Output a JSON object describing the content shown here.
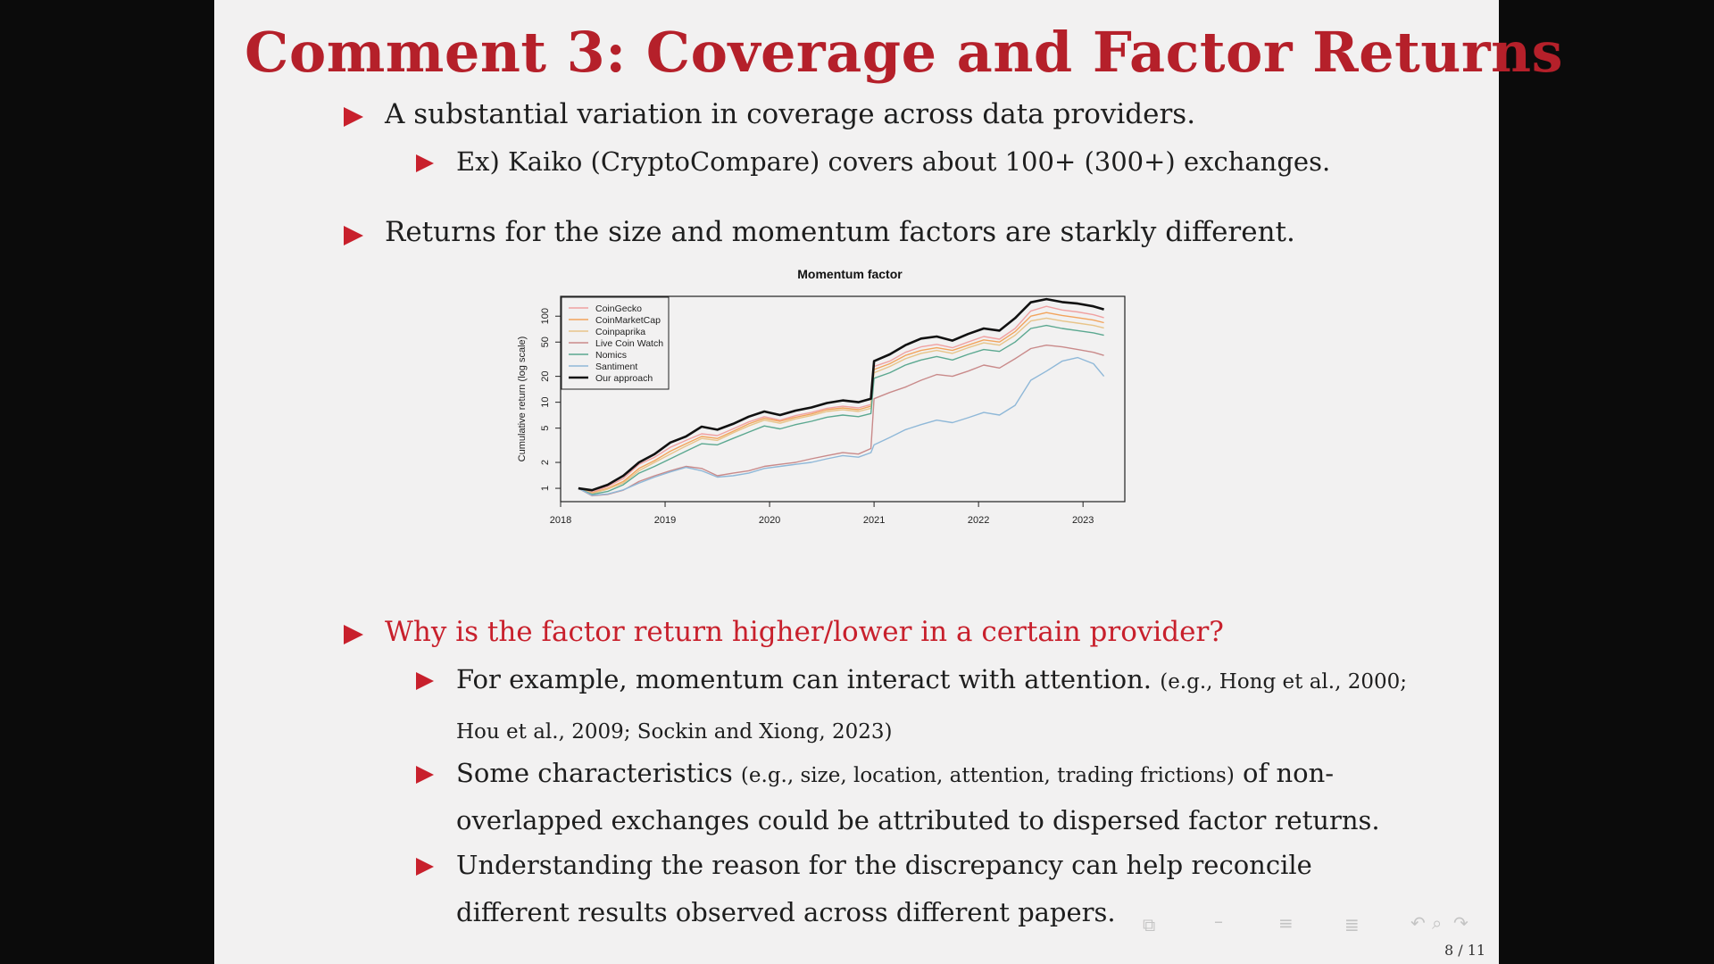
{
  "slide": {
    "title": "Comment 3: Coverage and Factor Returns",
    "page_number": "8 / 11",
    "bullets": {
      "b1": "A substantial variation in coverage across data providers.",
      "b1_1": "Ex) Kaiko (CryptoCompare) covers about 100+ (300+) exchanges.",
      "b2": "Returns for the size and momentum factors are starkly different.",
      "b3": "Why is the factor return higher/lower in a certain provider?",
      "b3_1_main": "For example, momentum can interact with attention.",
      "b3_1_cite_a": "(e.g., Hong et al., 2000;",
      "b3_1_cite_b": "Hou et al., 2009; Sockin and Xiong, 2023)",
      "b3_2_a": "Some characteristics",
      "b3_2_cite": "(e.g., size, location, attention, trading frictions)",
      "b3_2_b": "of non-",
      "b3_2_c": "overlapped exchanges could be attributed to dispersed factor returns.",
      "b3_3_a": "Understanding the reason for the discrepancy can help reconcile",
      "b3_3_b": "different results observed across different papers."
    },
    "nav_icons": [
      "frame-icon",
      "section-icon",
      "subsection-icon",
      "slide-icon",
      "search-icon",
      "undo-icon"
    ]
  },
  "colors": {
    "accent": "#c8202c",
    "title": "#b5202a"
  },
  "chart_data": {
    "type": "line",
    "title": "Momentum factor",
    "xlabel": "",
    "ylabel": "Cumulative return (log scale)",
    "xlim": [
      2018.0,
      2023.4
    ],
    "x_ticks": [
      "2018",
      "2019",
      "2020",
      "2021",
      "2022",
      "2023"
    ],
    "y_scale": "log",
    "ylim": [
      0.7,
      170
    ],
    "y_ticks": [
      "1",
      "2",
      "5",
      "10",
      "20",
      "50",
      "100"
    ],
    "legend_position": "top-left",
    "x": [
      2018.17,
      2018.3,
      2018.45,
      2018.6,
      2018.75,
      2018.9,
      2019.05,
      2019.2,
      2019.35,
      2019.5,
      2019.65,
      2019.8,
      2019.95,
      2020.1,
      2020.25,
      2020.4,
      2020.55,
      2020.7,
      2020.85,
      2020.97,
      2021.0,
      2021.15,
      2021.3,
      2021.45,
      2021.6,
      2021.75,
      2021.9,
      2022.05,
      2022.2,
      2022.35,
      2022.5,
      2022.65,
      2022.8,
      2022.95,
      2023.1,
      2023.2
    ],
    "series": [
      {
        "name": "CoinGecko",
        "color": "#f0a1a1",
        "values": [
          1.0,
          0.9,
          1.05,
          1.3,
          1.9,
          2.3,
          3.0,
          3.6,
          4.3,
          4.1,
          4.9,
          5.9,
          6.8,
          6.2,
          7.0,
          7.6,
          8.5,
          9.0,
          8.6,
          9.4,
          26,
          30,
          38,
          44,
          47,
          43,
          50,
          58,
          54,
          72,
          115,
          130,
          118,
          112,
          104,
          96
        ]
      },
      {
        "name": "CoinMarketCap",
        "color": "#f2a45c",
        "values": [
          1.0,
          0.88,
          1.0,
          1.2,
          1.7,
          2.1,
          2.7,
          3.3,
          4.0,
          3.8,
          4.6,
          5.6,
          6.5,
          6.0,
          6.7,
          7.3,
          8.2,
          8.6,
          8.2,
          9.0,
          24,
          28,
          35,
          40,
          43,
          40,
          46,
          53,
          50,
          66,
          100,
          110,
          102,
          96,
          90,
          84
        ]
      },
      {
        "name": "Coinpaprika",
        "color": "#e8c489",
        "values": [
          1.0,
          0.87,
          0.98,
          1.15,
          1.6,
          2.0,
          2.5,
          3.1,
          3.8,
          3.6,
          4.4,
          5.3,
          6.2,
          5.7,
          6.4,
          7.0,
          7.8,
          8.2,
          7.8,
          8.5,
          22,
          26,
          32,
          37,
          40,
          37,
          43,
          49,
          46,
          60,
          88,
          95,
          88,
          83,
          78,
          73
        ]
      },
      {
        "name": "Live Coin Watch",
        "color": "#c98a8a",
        "values": [
          1.0,
          0.82,
          0.85,
          0.95,
          1.2,
          1.4,
          1.6,
          1.8,
          1.7,
          1.4,
          1.5,
          1.6,
          1.8,
          1.9,
          2.0,
          2.2,
          2.4,
          2.6,
          2.5,
          2.9,
          11,
          13,
          15,
          18,
          21,
          20,
          23,
          27,
          25,
          32,
          42,
          46,
          44,
          41,
          38,
          35
        ]
      },
      {
        "name": "Nomics",
        "color": "#5ba890",
        "values": [
          1.0,
          0.85,
          0.92,
          1.1,
          1.5,
          1.8,
          2.2,
          2.7,
          3.3,
          3.2,
          3.8,
          4.5,
          5.3,
          4.9,
          5.5,
          6.0,
          6.7,
          7.1,
          6.8,
          7.4,
          19,
          22,
          27,
          31,
          34,
          31,
          36,
          41,
          39,
          50,
          72,
          78,
          72,
          68,
          64,
          60
        ]
      },
      {
        "name": "Santiment",
        "color": "#8fb8d8",
        "values": [
          1.0,
          0.83,
          0.86,
          0.96,
          1.15,
          1.35,
          1.55,
          1.75,
          1.6,
          1.35,
          1.4,
          1.5,
          1.7,
          1.8,
          1.9,
          2.0,
          2.2,
          2.4,
          2.3,
          2.6,
          3.2,
          3.9,
          4.8,
          5.5,
          6.2,
          5.8,
          6.6,
          7.6,
          7.1,
          9.2,
          18,
          23,
          30,
          33,
          28,
          20
        ]
      },
      {
        "name": "Our approach",
        "color": "#111111",
        "values": [
          1.0,
          0.95,
          1.1,
          1.4,
          2.0,
          2.5,
          3.4,
          4.0,
          5.2,
          4.8,
          5.6,
          6.8,
          7.8,
          7.1,
          8.0,
          8.7,
          9.8,
          10.5,
          10.0,
          11.0,
          30,
          36,
          46,
          55,
          58,
          52,
          62,
          72,
          68,
          95,
          145,
          158,
          146,
          140,
          130,
          120
        ]
      }
    ]
  }
}
